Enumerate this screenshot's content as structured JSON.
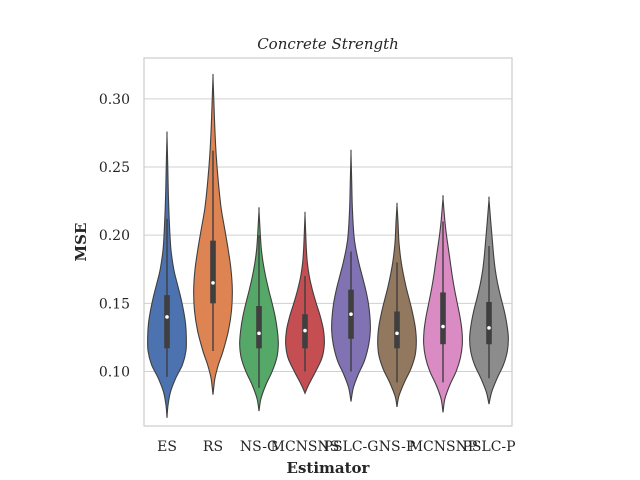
{
  "chart_data": {
    "type": "violin",
    "title": "Concrete Strength",
    "xlabel": "Estimator",
    "ylabel": "MSE",
    "ylim": [
      0.06,
      0.33
    ],
    "yticks": [
      0.1,
      0.15,
      0.2,
      0.25,
      0.3
    ],
    "ytick_labels": [
      "0.10",
      "0.15",
      "0.20",
      "0.25",
      "0.30"
    ],
    "grid": true,
    "categories": [
      "ES",
      "RS",
      "NS-G",
      "MCNSNS",
      "PSLC-G",
      "NS-P",
      "MCNSNP",
      "PSLC-P"
    ],
    "colors": [
      "#4c72b0",
      "#dd8452",
      "#55a868",
      "#c44e52",
      "#8172b3",
      "#937860",
      "#da8bc3",
      "#8c8c8c"
    ],
    "series": [
      {
        "min": 0.066,
        "max": 0.273,
        "q1": 0.117,
        "median": 0.14,
        "q3": 0.156,
        "whisker_low": 0.096,
        "whisker_high": 0.212,
        "profile": [
          [
            0.066,
            0.0
          ],
          [
            0.075,
            0.05
          ],
          [
            0.085,
            0.18
          ],
          [
            0.095,
            0.45
          ],
          [
            0.105,
            0.8
          ],
          [
            0.115,
            0.98
          ],
          [
            0.125,
            1.0
          ],
          [
            0.135,
            0.96
          ],
          [
            0.145,
            0.85
          ],
          [
            0.155,
            0.7
          ],
          [
            0.165,
            0.52
          ],
          [
            0.175,
            0.35
          ],
          [
            0.19,
            0.2
          ],
          [
            0.21,
            0.12
          ],
          [
            0.23,
            0.07
          ],
          [
            0.25,
            0.04
          ],
          [
            0.273,
            0.0
          ]
        ]
      },
      {
        "min": 0.083,
        "max": 0.316,
        "q1": 0.15,
        "median": 0.165,
        "q3": 0.196,
        "whisker_low": 0.115,
        "whisker_high": 0.262,
        "profile": [
          [
            0.083,
            0.0
          ],
          [
            0.095,
            0.1
          ],
          [
            0.105,
            0.28
          ],
          [
            0.115,
            0.52
          ],
          [
            0.13,
            0.8
          ],
          [
            0.145,
            0.96
          ],
          [
            0.16,
            1.0
          ],
          [
            0.175,
            0.93
          ],
          [
            0.19,
            0.78
          ],
          [
            0.205,
            0.6
          ],
          [
            0.22,
            0.42
          ],
          [
            0.24,
            0.27
          ],
          [
            0.26,
            0.16
          ],
          [
            0.28,
            0.09
          ],
          [
            0.3,
            0.04
          ],
          [
            0.316,
            0.0
          ]
        ]
      },
      {
        "min": 0.071,
        "max": 0.218,
        "q1": 0.117,
        "median": 0.128,
        "q3": 0.148,
        "whisker_low": 0.088,
        "whisker_high": 0.2,
        "profile": [
          [
            0.071,
            0.0
          ],
          [
            0.08,
            0.1
          ],
          [
            0.09,
            0.35
          ],
          [
            0.1,
            0.68
          ],
          [
            0.11,
            0.92
          ],
          [
            0.12,
            1.0
          ],
          [
            0.13,
            0.95
          ],
          [
            0.14,
            0.84
          ],
          [
            0.15,
            0.68
          ],
          [
            0.16,
            0.5
          ],
          [
            0.17,
            0.34
          ],
          [
            0.18,
            0.21
          ],
          [
            0.19,
            0.12
          ],
          [
            0.2,
            0.07
          ],
          [
            0.218,
            0.0
          ]
        ]
      },
      {
        "min": 0.084,
        "max": 0.215,
        "q1": 0.117,
        "median": 0.13,
        "q3": 0.142,
        "whisker_low": 0.1,
        "whisker_high": 0.17,
        "profile": [
          [
            0.084,
            0.0
          ],
          [
            0.09,
            0.18
          ],
          [
            0.1,
            0.55
          ],
          [
            0.11,
            0.88
          ],
          [
            0.12,
            1.0
          ],
          [
            0.13,
            0.96
          ],
          [
            0.14,
            0.8
          ],
          [
            0.15,
            0.58
          ],
          [
            0.16,
            0.38
          ],
          [
            0.17,
            0.22
          ],
          [
            0.18,
            0.12
          ],
          [
            0.19,
            0.07
          ],
          [
            0.2,
            0.04
          ],
          [
            0.215,
            0.0
          ]
        ]
      },
      {
        "min": 0.078,
        "max": 0.26,
        "q1": 0.124,
        "median": 0.142,
        "q3": 0.16,
        "whisker_low": 0.1,
        "whisker_high": 0.188,
        "profile": [
          [
            0.078,
            0.0
          ],
          [
            0.088,
            0.12
          ],
          [
            0.098,
            0.38
          ],
          [
            0.108,
            0.7
          ],
          [
            0.12,
            0.92
          ],
          [
            0.13,
            1.0
          ],
          [
            0.14,
            0.98
          ],
          [
            0.15,
            0.9
          ],
          [
            0.16,
            0.76
          ],
          [
            0.17,
            0.58
          ],
          [
            0.18,
            0.4
          ],
          [
            0.19,
            0.25
          ],
          [
            0.2,
            0.15
          ],
          [
            0.22,
            0.07
          ],
          [
            0.24,
            0.035
          ],
          [
            0.26,
            0.0
          ]
        ]
      },
      {
        "min": 0.074,
        "max": 0.222,
        "q1": 0.117,
        "median": 0.128,
        "q3": 0.144,
        "whisker_low": 0.092,
        "whisker_high": 0.18,
        "profile": [
          [
            0.074,
            0.0
          ],
          [
            0.082,
            0.1
          ],
          [
            0.092,
            0.38
          ],
          [
            0.102,
            0.72
          ],
          [
            0.112,
            0.94
          ],
          [
            0.122,
            1.0
          ],
          [
            0.132,
            0.95
          ],
          [
            0.142,
            0.82
          ],
          [
            0.152,
            0.65
          ],
          [
            0.162,
            0.47
          ],
          [
            0.172,
            0.32
          ],
          [
            0.182,
            0.2
          ],
          [
            0.195,
            0.1
          ],
          [
            0.21,
            0.05
          ],
          [
            0.222,
            0.0
          ]
        ]
      },
      {
        "min": 0.07,
        "max": 0.227,
        "q1": 0.12,
        "median": 0.133,
        "q3": 0.158,
        "whisker_low": 0.092,
        "whisker_high": 0.21,
        "profile": [
          [
            0.07,
            0.0
          ],
          [
            0.08,
            0.1
          ],
          [
            0.09,
            0.35
          ],
          [
            0.1,
            0.68
          ],
          [
            0.11,
            0.9
          ],
          [
            0.12,
            1.0
          ],
          [
            0.13,
            0.98
          ],
          [
            0.14,
            0.88
          ],
          [
            0.15,
            0.74
          ],
          [
            0.16,
            0.6
          ],
          [
            0.17,
            0.48
          ],
          [
            0.18,
            0.38
          ],
          [
            0.19,
            0.28
          ],
          [
            0.2,
            0.18
          ],
          [
            0.21,
            0.1
          ],
          [
            0.227,
            0.0
          ]
        ]
      },
      {
        "min": 0.076,
        "max": 0.226,
        "q1": 0.12,
        "median": 0.132,
        "q3": 0.151,
        "whisker_low": 0.095,
        "whisker_high": 0.192,
        "profile": [
          [
            0.076,
            0.0
          ],
          [
            0.085,
            0.14
          ],
          [
            0.095,
            0.42
          ],
          [
            0.105,
            0.75
          ],
          [
            0.115,
            0.95
          ],
          [
            0.125,
            1.0
          ],
          [
            0.135,
            0.92
          ],
          [
            0.145,
            0.78
          ],
          [
            0.155,
            0.6
          ],
          [
            0.165,
            0.44
          ],
          [
            0.175,
            0.32
          ],
          [
            0.185,
            0.24
          ],
          [
            0.195,
            0.18
          ],
          [
            0.21,
            0.09
          ],
          [
            0.226,
            0.0
          ]
        ]
      }
    ]
  }
}
